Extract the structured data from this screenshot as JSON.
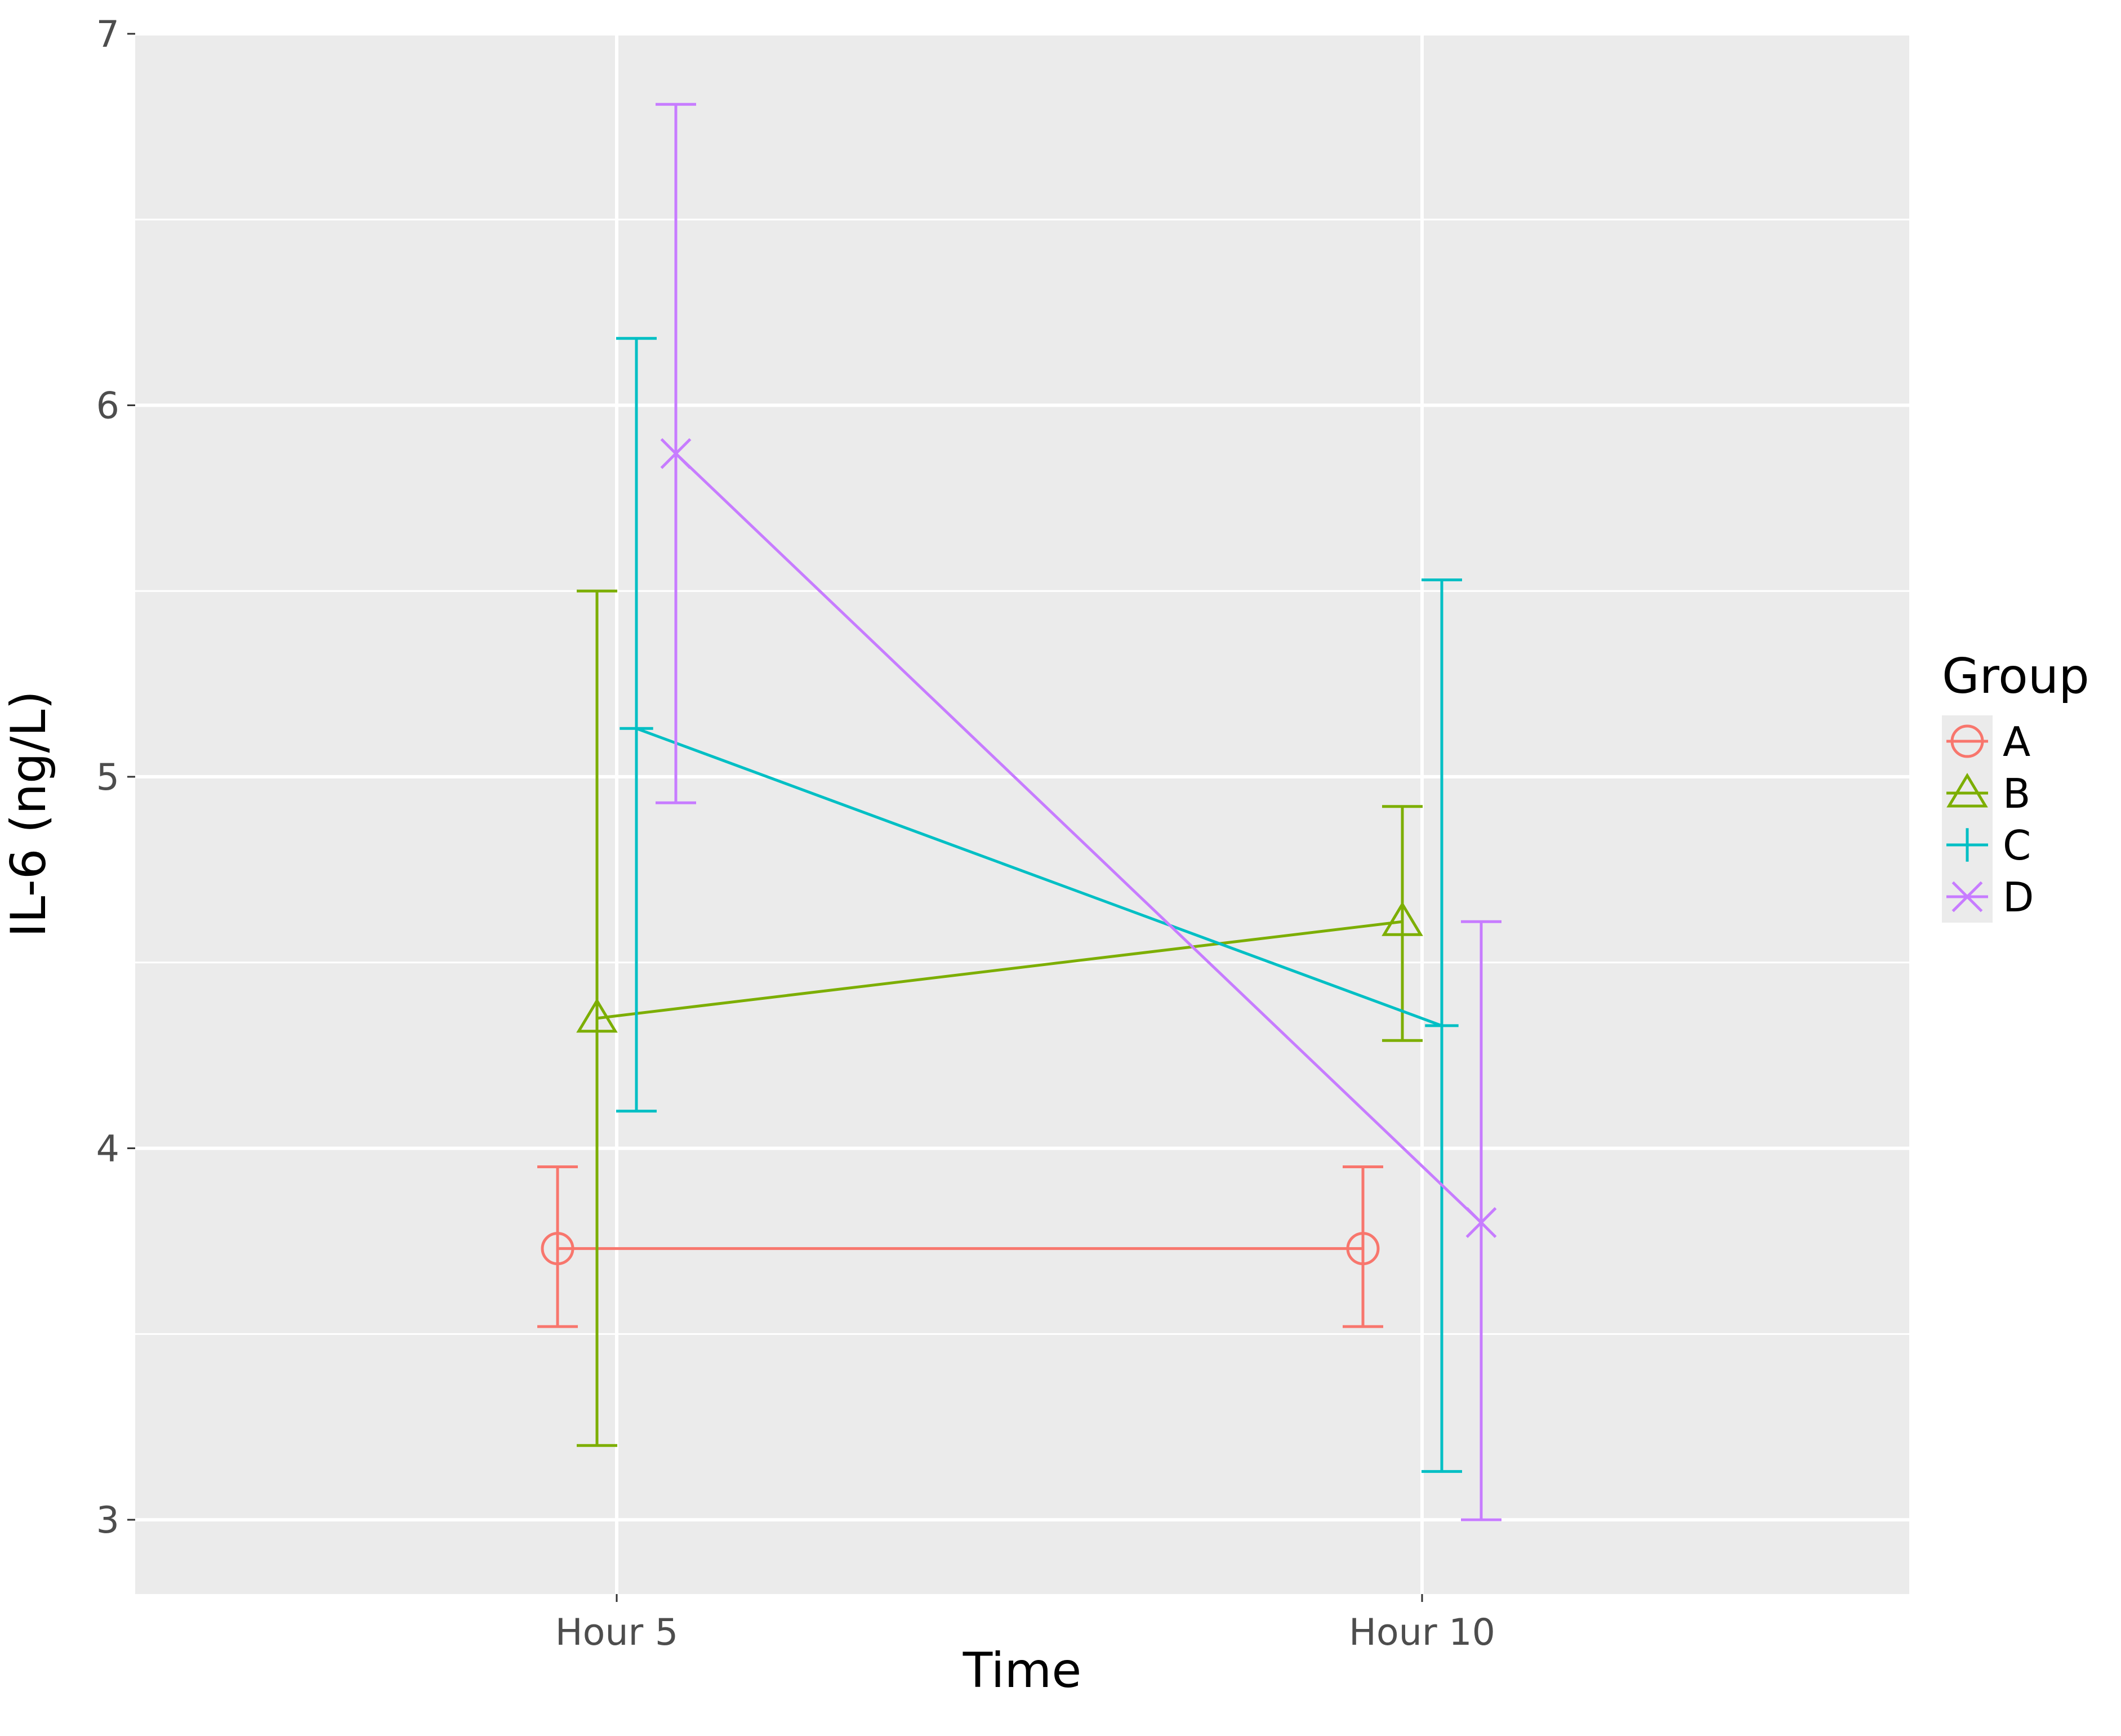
{
  "chart_data": {
    "type": "line",
    "title": "",
    "xlabel": "Time",
    "ylabel": "IL-6 (ng/L)",
    "categories": [
      "Hour 5",
      "Hour 10"
    ],
    "ylim": [
      2.8,
      7.0
    ],
    "yticks": [
      3,
      4,
      5,
      6,
      7
    ],
    "grid": true,
    "error_bars": true,
    "legend": {
      "title": "Group",
      "position": "right"
    },
    "series": [
      {
        "name": "A",
        "color": "#F8766D",
        "marker": "circle",
        "values": [
          3.73,
          3.73
        ],
        "lower": [
          3.52,
          3.52
        ],
        "upper": [
          3.95,
          3.95
        ]
      },
      {
        "name": "B",
        "color": "#7CAE00",
        "marker": "triangle",
        "values": [
          4.35,
          4.61
        ],
        "lower": [
          3.2,
          4.29
        ],
        "upper": [
          5.5,
          4.92
        ]
      },
      {
        "name": "C",
        "color": "#00BFC4",
        "marker": "plus",
        "values": [
          5.13,
          4.33
        ],
        "lower": [
          4.1,
          3.13
        ],
        "upper": [
          6.18,
          5.53
        ]
      },
      {
        "name": "D",
        "color": "#C77CFF",
        "marker": "cross",
        "values": [
          5.87,
          3.8
        ],
        "lower": [
          4.93,
          3.0
        ],
        "upper": [
          6.81,
          4.61
        ]
      }
    ]
  }
}
